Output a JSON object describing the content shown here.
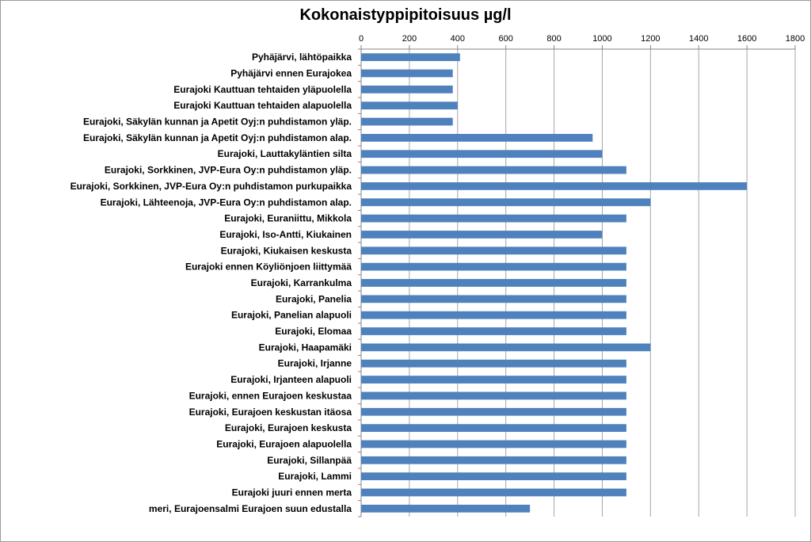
{
  "chart_data": {
    "type": "bar",
    "orientation": "horizontal",
    "title": "Kokonaistyppipitoisuus µg/l",
    "xlabel": "",
    "ylabel": "",
    "xlim": [
      0,
      1800
    ],
    "x_ticks": [
      0,
      200,
      400,
      600,
      800,
      1000,
      1200,
      1400,
      1600,
      1800
    ],
    "x_axis_position": "top",
    "grid": "vertical-major",
    "legend": "none",
    "bar_color": "#4f81bd",
    "categories": [
      "Pyhäjärvi, lähtöpaikka",
      "Pyhäjärvi ennen Eurajokea",
      "Eurajoki Kauttuan tehtaiden yläpuolella",
      "Eurajoki Kauttuan tehtaiden alapuolella",
      "Eurajoki, Säkylän kunnan ja Apetit Oyj:n puhdistamon yläp.",
      "Eurajoki, Säkylän kunnan ja Apetit Oyj:n puhdistamon alap.",
      "Eurajoki, Lauttakyläntien silta",
      "Eurajoki, Sorkkinen, JVP-Eura Oy:n puhdistamon yläp.",
      "Eurajoki, Sorkkinen, JVP-Eura Oy:n puhdistamon purkupaikka",
      "Eurajoki, Lähteenoja, JVP-Eura Oy:n puhdistamon alap.",
      "Eurajoki, Euraniittu, Mikkola",
      "Eurajoki, Iso-Antti, Kiukainen",
      "Eurajoki, Kiukaisen keskusta",
      "Eurajoki ennen Köyliönjoen liittymää",
      "Eurajoki, Karrankulma",
      "Eurajoki, Panelia",
      "Eurajoki, Panelian alapuoli",
      "Eurajoki, Elomaa",
      "Eurajoki, Haapamäki",
      "Eurajoki, Irjanne",
      "Eurajoki, Irjanteen alapuoli",
      "Eurajoki, ennen Eurajoen keskustaa",
      "Eurajoki, Eurajoen keskustan itäosa",
      "Eurajoki, Eurajoen keskusta",
      "Eurajoki, Eurajoen alapuolella",
      "Eurajoki, Sillanpää",
      "Eurajoki, Lammi",
      "Eurajoki juuri ennen merta",
      "meri, Eurajoensalmi Eurajoen suun edustalla"
    ],
    "values": [
      410,
      380,
      380,
      400,
      380,
      960,
      1000,
      1100,
      1600,
      1200,
      1100,
      1000,
      1100,
      1100,
      1100,
      1100,
      1100,
      1100,
      1200,
      1100,
      1100,
      1100,
      1100,
      1100,
      1100,
      1100,
      1100,
      1100,
      700
    ]
  }
}
